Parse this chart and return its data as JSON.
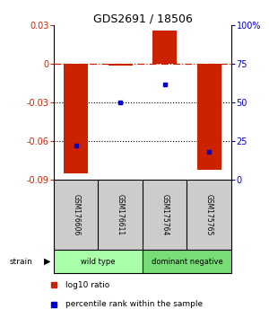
{
  "title": "GDS2691 / 18506",
  "samples": [
    "GSM176606",
    "GSM176611",
    "GSM175764",
    "GSM175765"
  ],
  "log10_ratio": [
    -0.085,
    -0.001,
    0.026,
    -0.082
  ],
  "percentile_rank": [
    22,
    50,
    62,
    18
  ],
  "groups": [
    {
      "label": "wild type",
      "color": "#aaffaa",
      "indices": [
        0,
        1
      ]
    },
    {
      "label": "dominant negative",
      "color": "#77dd77",
      "indices": [
        2,
        3
      ]
    }
  ],
  "ylim_left": [
    -0.09,
    0.03
  ],
  "ylim_right": [
    0,
    100
  ],
  "yticks_left": [
    -0.09,
    -0.06,
    -0.03,
    0,
    0.03
  ],
  "yticks_right": [
    0,
    25,
    50,
    75,
    100
  ],
  "hline_y": 0,
  "dotted_lines": [
    -0.03,
    -0.06
  ],
  "bar_color": "#cc2200",
  "dot_color": "#0000cc",
  "bar_width": 0.55,
  "label_log10": "log10 ratio",
  "label_pct": "percentile rank within the sample",
  "strain_label": "strain",
  "sample_box_color": "#cccccc",
  "background_color": "#ffffff",
  "title_fontsize": 9,
  "tick_fontsize": 7,
  "sample_fontsize": 5.5,
  "group_fontsize": 6,
  "legend_fontsize": 6.5
}
